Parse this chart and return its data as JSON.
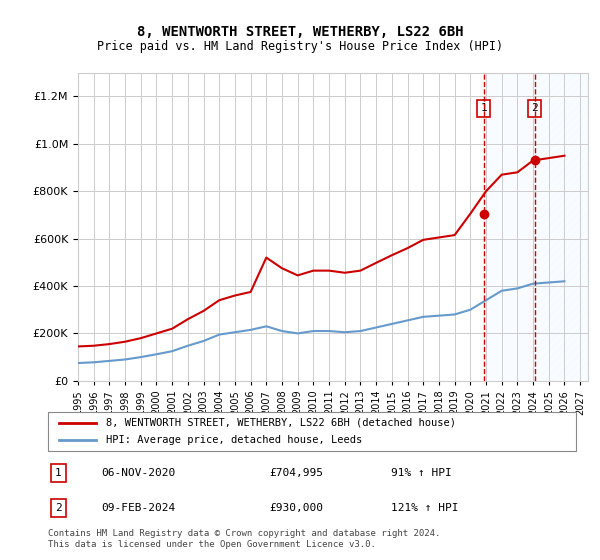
{
  "title": "8, WENTWORTH STREET, WETHERBY, LS22 6BH",
  "subtitle": "Price paid vs. HM Land Registry's House Price Index (HPI)",
  "legend_line1": "8, WENTWORTH STREET, WETHERBY, LS22 6BH (detached house)",
  "legend_line2": "HPI: Average price, detached house, Leeds",
  "footnote": "Contains HM Land Registry data © Crown copyright and database right 2024.\nThis data is licensed under the Open Government Licence v3.0.",
  "transaction1_label": "1",
  "transaction1_date": "06-NOV-2020",
  "transaction1_price": "£704,995",
  "transaction1_hpi": "91% ↑ HPI",
  "transaction2_label": "2",
  "transaction2_date": "09-FEB-2024",
  "transaction2_price": "£930,000",
  "transaction2_hpi": "121% ↑ HPI",
  "ylim": [
    0,
    1300000
  ],
  "xlim_start": 1995.0,
  "xlim_end": 2027.5,
  "red_color": "#cc0000",
  "blue_color": "#6699cc",
  "shaded_region_color": "#ddeeff",
  "hatch_region_color": "#ddeeff",
  "transaction1_x": 2020.85,
  "transaction2_x": 2024.1,
  "hpi_years": [
    1995,
    1996,
    1997,
    1998,
    1999,
    2000,
    2001,
    2002,
    2003,
    2004,
    2005,
    2006,
    2007,
    2008,
    2009,
    2010,
    2011,
    2012,
    2013,
    2014,
    2015,
    2016,
    2017,
    2018,
    2019,
    2020,
    2021,
    2022,
    2023,
    2024,
    2025,
    2026
  ],
  "hpi_values": [
    75000,
    78000,
    84000,
    90000,
    100000,
    112000,
    125000,
    148000,
    168000,
    195000,
    205000,
    215000,
    230000,
    210000,
    200000,
    210000,
    210000,
    205000,
    210000,
    225000,
    240000,
    255000,
    270000,
    275000,
    280000,
    300000,
    340000,
    380000,
    390000,
    410000,
    415000,
    420000
  ],
  "property_years": [
    1995,
    1996,
    1997,
    1998,
    1999,
    2000,
    2001,
    2002,
    2003,
    2004,
    2005,
    2006,
    2007,
    2008,
    2009,
    2010,
    2011,
    2012,
    2013,
    2014,
    2015,
    2016,
    2017,
    2018,
    2019,
    2020,
    2021,
    2022,
    2023,
    2024,
    2025,
    2026
  ],
  "property_values": [
    145000,
    148000,
    155000,
    165000,
    180000,
    200000,
    220000,
    260000,
    295000,
    340000,
    360000,
    375000,
    520000,
    475000,
    445000,
    465000,
    465000,
    456000,
    465000,
    498000,
    530000,
    560000,
    595000,
    605000,
    615000,
    704995,
    800000,
    870000,
    880000,
    930000,
    940000,
    950000
  ]
}
